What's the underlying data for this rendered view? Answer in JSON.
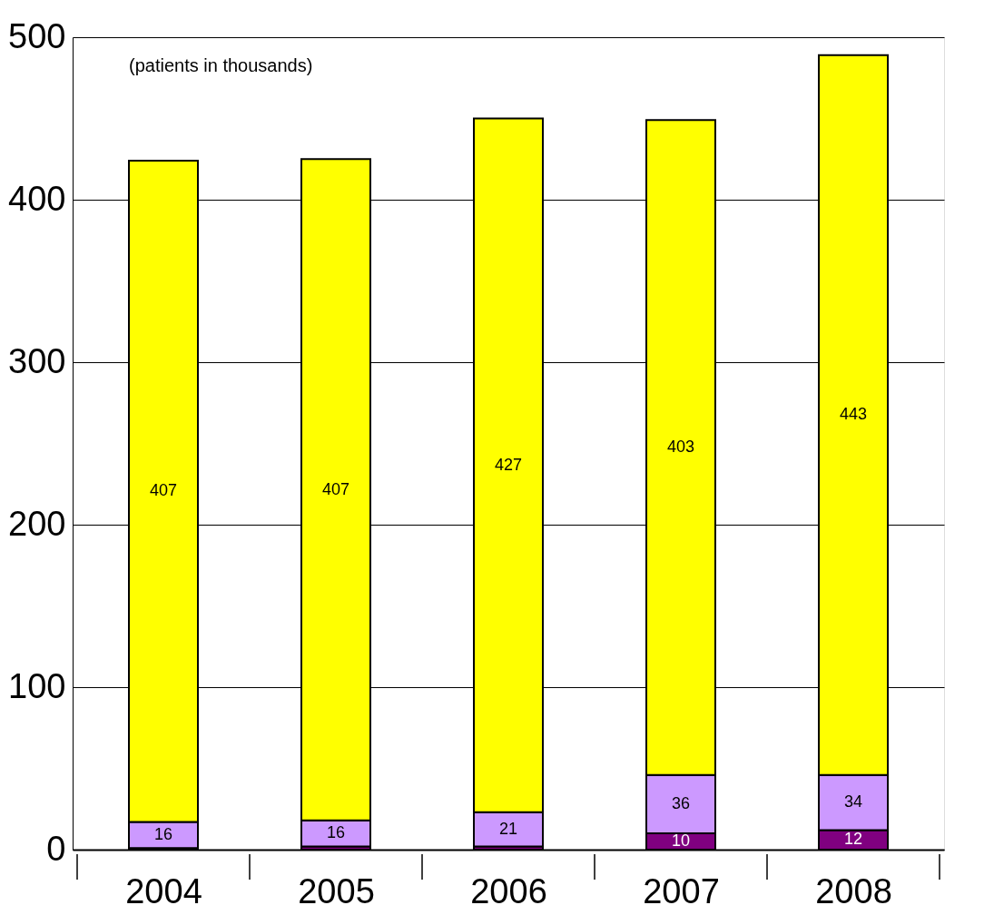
{
  "chart_data": {
    "type": "bar",
    "stacked": true,
    "categories": [
      "2004",
      "2005",
      "2006",
      "2007",
      "2008"
    ],
    "series": [
      {
        "color": "#800080",
        "values": [
          1,
          2,
          2,
          10,
          12
        ],
        "value_labels": [
          null,
          null,
          null,
          "10",
          "12"
        ]
      },
      {
        "color": "#cc99ff",
        "values": [
          16,
          16,
          21,
          36,
          34
        ],
        "value_labels": [
          "16",
          "16",
          "21",
          "36",
          "34"
        ]
      },
      {
        "color": "#ffff00",
        "values": [
          407,
          407,
          427,
          403,
          443
        ],
        "value_labels": [
          "407",
          "407",
          "427",
          "403",
          "443"
        ]
      }
    ],
    "ylim": [
      0,
      500
    ],
    "yticks": [
      0,
      100,
      200,
      300,
      400,
      500
    ],
    "grid": "y",
    "annotations": [
      "(patients in thousands)"
    ]
  }
}
